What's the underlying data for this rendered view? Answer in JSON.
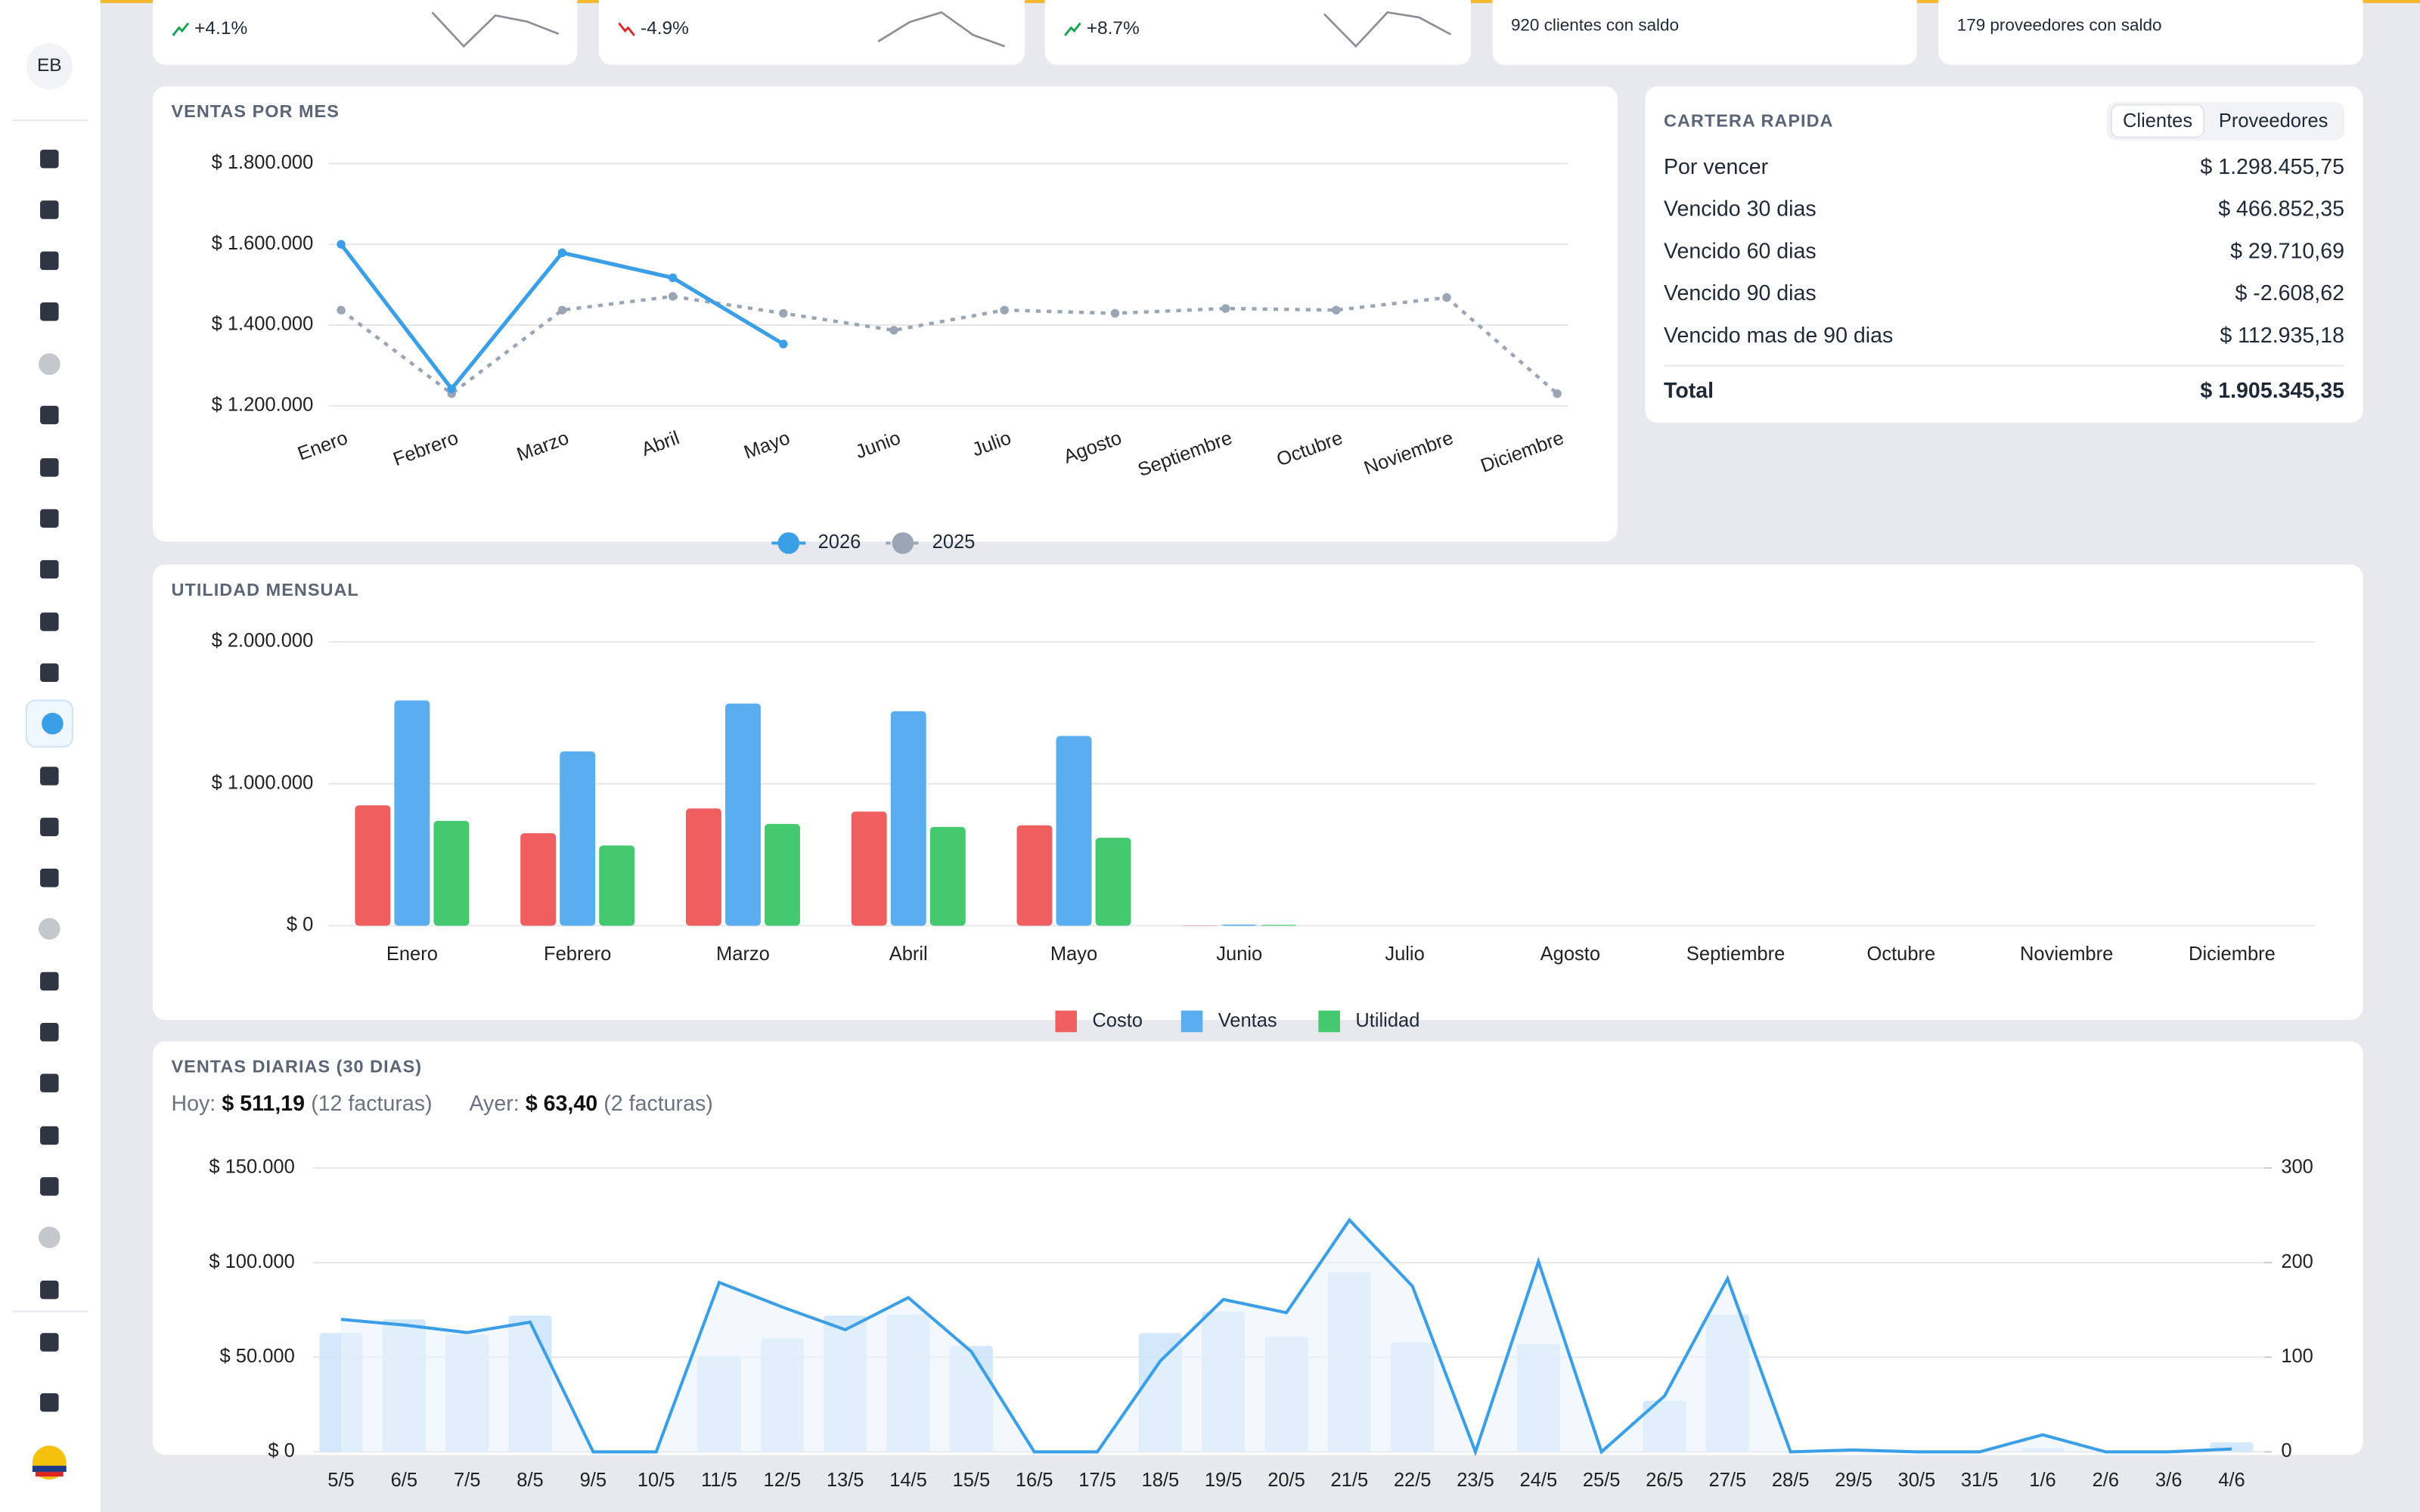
{
  "sidebar": {
    "avatar": "EB"
  },
  "kpi_cards": [
    {
      "change": "+4.1%",
      "color": "#16a34a",
      "sparkline": [
        22,
        0,
        20,
        16,
        8
      ]
    },
    {
      "change": "-4.9%",
      "color": "#dc2626",
      "sparkline": [
        3,
        15,
        21,
        7,
        0
      ]
    },
    {
      "change": "+8.7%",
      "color": "#16a34a",
      "sparkline": [
        19,
        0,
        20,
        17,
        7
      ]
    },
    {
      "note": "920 clientes con saldo"
    },
    {
      "note": "179 proveedores con saldo"
    }
  ],
  "cartera": {
    "title": "CARTERA RAPIDA",
    "tabs": [
      "Clientes",
      "Proveedores"
    ],
    "active_tab": 0,
    "rows": [
      {
        "label": "Por vencer",
        "value": "$ 1.298.455,75"
      },
      {
        "label": "Vencido 30 dias",
        "value": "$ 466.852,35"
      },
      {
        "label": "Vencido 60 dias",
        "value": "$ 29.710,69"
      },
      {
        "label": "Vencido 90 dias",
        "value": "$ -2.608,62"
      },
      {
        "label": "Vencido mas de 90 dias",
        "value": "$ 112.935,18"
      }
    ],
    "total": {
      "label": "Total",
      "value": "$ 1.905.345,35"
    }
  },
  "summary": {
    "hoy_label": "Hoy:",
    "hoy_value": "$ 511,19",
    "hoy_note": "(12 facturas)",
    "ayer_label": "Ayer:",
    "ayer_value": "$ 63,40",
    "ayer_note": "(2 facturas)"
  },
  "chart_data": [
    {
      "type": "line",
      "title": "VENTAS POR MES",
      "categories": [
        "Enero",
        "Febrero",
        "Marzo",
        "Abril",
        "Mayo",
        "Junio",
        "Julio",
        "Agosto",
        "Septiembre",
        "Octubre",
        "Noviembre",
        "Diciembre"
      ],
      "series": [
        {
          "name": "2026",
          "color": "#3b9fe8",
          "dashed": false,
          "values": [
            1600000,
            1242000,
            1579000,
            1517000,
            1353000,
            null,
            null,
            null,
            null,
            null,
            null,
            null
          ]
        },
        {
          "name": "2025",
          "color": "#9aa5b5",
          "dashed": true,
          "values": [
            1437000,
            1230000,
            1437000,
            1471000,
            1429000,
            1387000,
            1437000,
            1429000,
            1441000,
            1437000,
            1468000,
            1230000
          ]
        }
      ],
      "ylim": [
        1200000,
        1800000
      ],
      "yticks": [
        {
          "value": 1200000,
          "label": "$ 1.200.000"
        },
        {
          "value": 1400000,
          "label": "$ 1.400.000"
        },
        {
          "value": 1600000,
          "label": "$ 1.600.000"
        },
        {
          "value": 1800000,
          "label": "$ 1.800.000"
        }
      ],
      "grid": true,
      "legend": "bottom"
    },
    {
      "type": "bar",
      "title": "UTILIDAD MENSUAL",
      "categories": [
        "Enero",
        "Febrero",
        "Marzo",
        "Abril",
        "Mayo",
        "Junio",
        "Julio",
        "Agosto",
        "Septiembre",
        "Octubre",
        "Noviembre",
        "Diciembre"
      ],
      "series": [
        {
          "name": "Costo",
          "color": "#ef5f5f",
          "values": [
            848000,
            652000,
            826000,
            804000,
            707000,
            2000,
            0,
            0,
            0,
            0,
            0,
            0
          ]
        },
        {
          "name": "Ventas",
          "color": "#5aaeef",
          "values": [
            1587000,
            1228000,
            1565000,
            1511000,
            1337000,
            8000,
            0,
            0,
            0,
            0,
            0,
            0
          ]
        },
        {
          "name": "Utilidad",
          "color": "#44c96f",
          "values": [
            739000,
            565000,
            717000,
            696000,
            620000,
            6000,
            0,
            0,
            0,
            0,
            0,
            0
          ]
        }
      ],
      "ylim": [
        0,
        2000000
      ],
      "yticks": [
        {
          "value": 0,
          "label": "$ 0"
        },
        {
          "value": 1000000,
          "label": "$ 1.000.000"
        },
        {
          "value": 2000000,
          "label": "$ 2.000.000"
        }
      ],
      "grid": true,
      "legend": "bottom"
    },
    {
      "type": "combo",
      "title": "VENTAS DIARIAS (30 DIAS)",
      "categories": [
        "5/5",
        "6/5",
        "7/5",
        "8/5",
        "9/5",
        "10/5",
        "11/5",
        "12/5",
        "13/5",
        "14/5",
        "15/5",
        "16/5",
        "17/5",
        "18/5",
        "19/5",
        "20/5",
        "21/5",
        "22/5",
        "23/5",
        "24/5",
        "25/5",
        "26/5",
        "27/5",
        "28/5",
        "29/5",
        "30/5",
        "31/5",
        "1/6",
        "2/6",
        "3/6",
        "4/6"
      ],
      "series": [
        {
          "kind": "bar",
          "color": "#cfe6fb",
          "values": [
            62800,
            70000,
            62000,
            72000,
            0,
            0,
            50600,
            60000,
            72000,
            72600,
            56000,
            0,
            0,
            62800,
            74000,
            61000,
            95000,
            58000,
            0,
            57000,
            0,
            27000,
            72600,
            0,
            1500,
            500,
            0,
            2000,
            0,
            500,
            5000
          ]
        },
        {
          "kind": "line",
          "axis": "y2",
          "color": "#3b9fe8",
          "fill": "#e9f3fd",
          "values": [
            140,
            134,
            126,
            137,
            0,
            0,
            179,
            153,
            129,
            163,
            106,
            0,
            0,
            96,
            161,
            147,
            245,
            175,
            0,
            201,
            0,
            59,
            183,
            0,
            2,
            0,
            0,
            18,
            0,
            0,
            3
          ]
        }
      ],
      "ylim": [
        0,
        150000
      ],
      "yticks": [
        {
          "value": 0,
          "label": "$ 0"
        },
        {
          "value": 50000,
          "label": "$ 50.000"
        },
        {
          "value": 100000,
          "label": "$ 100.000"
        },
        {
          "value": 150000,
          "label": "$ 150.000"
        }
      ],
      "y2lim": [
        0,
        300
      ],
      "y2ticks": [
        0,
        100,
        200,
        300
      ],
      "grid": true
    }
  ]
}
